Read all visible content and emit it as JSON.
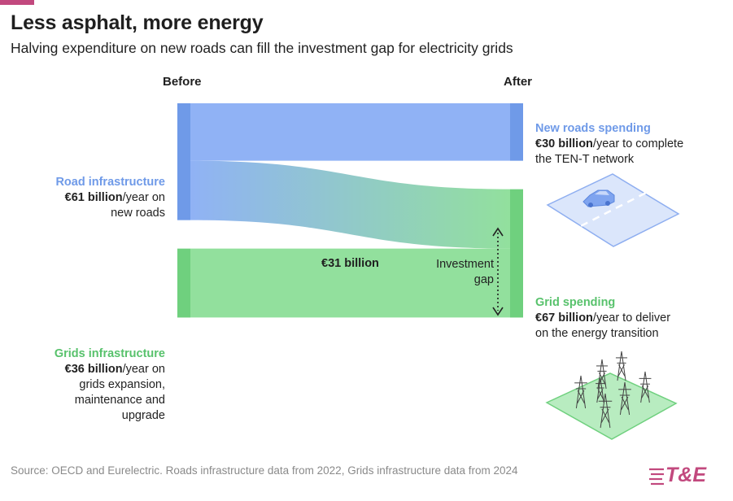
{
  "title": "Less asphalt, more energy",
  "subtitle": "Halving expenditure on new roads can fill the investment gap for electricity grids",
  "columns": {
    "before": "Before",
    "after": "After"
  },
  "labels": {
    "road_infra": {
      "head": "Road infrastructure",
      "value": "€61 billion",
      "rest_1": "/year on",
      "rest_2": "new roads"
    },
    "grids_infra": {
      "head": "Grids infrastructure",
      "value": "€36 billion",
      "rest_1": "/year on",
      "rest_2": "grids expansion,",
      "rest_3": "maintenance and",
      "rest_4": "upgrade"
    },
    "new_roads": {
      "head": "New roads spending",
      "value": "€30 billion",
      "rest_1": "/year to complete",
      "rest_2": "the TEN-T network"
    },
    "grid_spending": {
      "head": "Grid spending",
      "value": "€67 billion",
      "rest_1": "/year to deliver",
      "rest_2": "on the energy transition"
    }
  },
  "flow_label": "€31 billion",
  "gap_label": {
    "line1": "Investment",
    "line2": "gap"
  },
  "source": "Source: OECD and Eurelectric. Roads infrastructure data from 2022, Grids infrastructure data from 2024",
  "logo": "T&E",
  "colors": {
    "road": "#90b2f5",
    "road_dark": "#6f9ae8",
    "grid": "#92e09d",
    "grid_dark": "#6fd07e",
    "accent": "#c2497e"
  },
  "icons": {
    "road_icon": "car-on-road-icon",
    "grid_icon": "power-pylons-icon"
  },
  "chart_data": {
    "type": "sankey",
    "title": "Less asphalt, more energy",
    "subtitle": "Halving expenditure on new roads can fill the investment gap for electricity grids",
    "unit": "€ billion per year",
    "nodes_before": [
      {
        "name": "Road infrastructure",
        "value": 61
      },
      {
        "name": "Grids infrastructure",
        "value": 36
      }
    ],
    "nodes_after": [
      {
        "name": "New roads spending",
        "value": 30
      },
      {
        "name": "Grid spending",
        "value": 67
      }
    ],
    "flows": [
      {
        "from": "Road infrastructure",
        "to": "New roads spending",
        "value": 30
      },
      {
        "from": "Road infrastructure",
        "to": "Grid spending",
        "value": 31
      },
      {
        "from": "Grids infrastructure",
        "to": "Grid spending",
        "value": 36
      }
    ]
  }
}
